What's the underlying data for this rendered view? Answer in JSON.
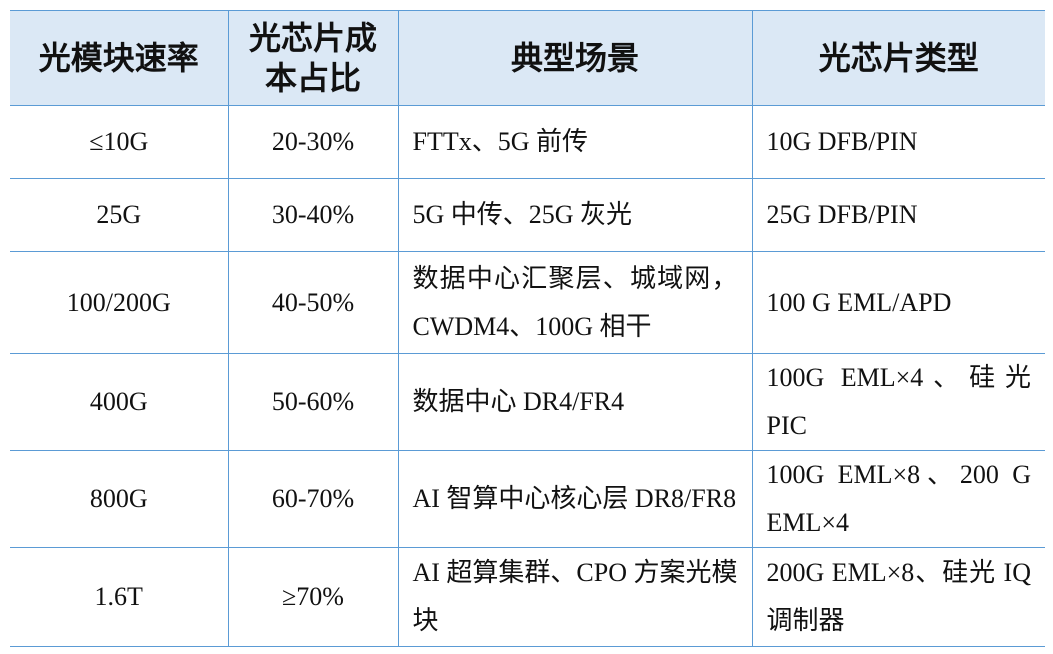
{
  "table": {
    "header": [
      "光模块速率",
      "光芯片成本占比",
      "典型场景",
      "光芯片类型"
    ],
    "rows": [
      [
        "≤10G",
        "20-30%",
        "FTTx、5G 前传",
        "10G DFB/PIN"
      ],
      [
        "25G",
        "30-40%",
        "5G 中传、25G 灰光",
        "25G DFB/PIN"
      ],
      [
        "100/200G",
        "40-50%",
        "数据中心汇聚层、城域网，CWDM4、100G 相干",
        "100 G EML/APD"
      ],
      [
        "400G",
        "50-60%",
        "数据中心 DR4/FR4",
        "100G EML×4、硅光 PIC"
      ],
      [
        "800G",
        "60-70%",
        "AI 智算中心核心层 DR8/FR8",
        "100G EML×8、200 G EML×4"
      ],
      [
        "1.6T",
        "≥70%",
        "AI 超算集群、CPO 方案光模块",
        "200G EML×8、硅光 IQ 调制器"
      ]
    ]
  }
}
